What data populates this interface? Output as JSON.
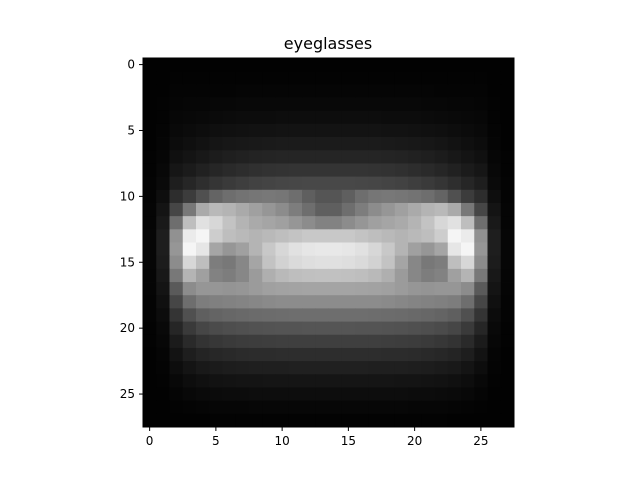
{
  "chart_data": {
    "type": "heatmap",
    "title": "eyeglasses",
    "xlabel": "",
    "ylabel": "",
    "colormap": "gray",
    "origin": "upper",
    "grid": false,
    "xlim": [
      -0.5,
      27.5
    ],
    "ylim": [
      27.5,
      -0.5
    ],
    "xticks": [
      0,
      5,
      10,
      15,
      20,
      25
    ],
    "yticks": [
      0,
      5,
      10,
      15,
      20,
      25
    ],
    "value_range": [
      0,
      255
    ],
    "rows": 28,
    "cols": 28,
    "values": [
      [
        2,
        2,
        2,
        2,
        2,
        2,
        2,
        2,
        2,
        2,
        2,
        2,
        2,
        2,
        2,
        2,
        2,
        2,
        2,
        2,
        2,
        2,
        2,
        2,
        2,
        2,
        2,
        2
      ],
      [
        2,
        2,
        3,
        3,
        3,
        3,
        3,
        3,
        3,
        3,
        3,
        3,
        3,
        3,
        3,
        3,
        3,
        3,
        3,
        3,
        3,
        3,
        3,
        3,
        3,
        3,
        2,
        2
      ],
      [
        2,
        2,
        4,
        4,
        4,
        4,
        4,
        5,
        5,
        5,
        5,
        5,
        5,
        5,
        5,
        5,
        5,
        5,
        5,
        5,
        5,
        5,
        4,
        4,
        4,
        4,
        2,
        2
      ],
      [
        2,
        3,
        5,
        6,
        6,
        7,
        7,
        8,
        8,
        8,
        8,
        8,
        8,
        8,
        8,
        8,
        8,
        8,
        8,
        8,
        8,
        7,
        7,
        6,
        6,
        5,
        3,
        2
      ],
      [
        2,
        3,
        7,
        8,
        9,
        10,
        11,
        12,
        12,
        12,
        13,
        13,
        13,
        13,
        13,
        13,
        13,
        13,
        12,
        12,
        12,
        11,
        10,
        9,
        8,
        7,
        3,
        2
      ],
      [
        2,
        4,
        9,
        11,
        13,
        15,
        16,
        17,
        18,
        18,
        19,
        19,
        19,
        19,
        19,
        19,
        19,
        19,
        18,
        18,
        17,
        16,
        15,
        13,
        11,
        9,
        4,
        2
      ],
      [
        2,
        5,
        12,
        15,
        18,
        21,
        23,
        24,
        25,
        26,
        27,
        27,
        27,
        27,
        27,
        27,
        27,
        27,
        26,
        25,
        24,
        23,
        21,
        18,
        15,
        12,
        5,
        2
      ],
      [
        3,
        6,
        16,
        20,
        24,
        28,
        31,
        33,
        35,
        36,
        37,
        37,
        37,
        37,
        37,
        37,
        37,
        37,
        36,
        35,
        33,
        31,
        28,
        24,
        20,
        16,
        6,
        3
      ],
      [
        3,
        8,
        22,
        27,
        33,
        38,
        42,
        45,
        48,
        50,
        51,
        52,
        52,
        52,
        52,
        52,
        52,
        51,
        50,
        48,
        45,
        42,
        38,
        33,
        27,
        22,
        8,
        3
      ],
      [
        4,
        10,
        30,
        38,
        46,
        53,
        58,
        62,
        66,
        68,
        70,
        71,
        72,
        72,
        72,
        72,
        71,
        70,
        68,
        66,
        62,
        58,
        53,
        46,
        38,
        30,
        10,
        4
      ],
      [
        4,
        14,
        45,
        60,
        80,
        100,
        110,
        115,
        118,
        120,
        118,
        110,
        95,
        85,
        85,
        95,
        110,
        118,
        120,
        118,
        115,
        110,
        100,
        80,
        60,
        45,
        14,
        4
      ],
      [
        5,
        20,
        70,
        120,
        170,
        185,
        180,
        170,
        160,
        150,
        140,
        125,
        110,
        95,
        95,
        110,
        125,
        140,
        150,
        160,
        170,
        180,
        185,
        170,
        120,
        70,
        20,
        5
      ],
      [
        5,
        25,
        110,
        190,
        225,
        215,
        195,
        180,
        170,
        165,
        160,
        150,
        140,
        130,
        130,
        140,
        150,
        160,
        165,
        170,
        180,
        195,
        215,
        225,
        190,
        110,
        25,
        5
      ],
      [
        6,
        30,
        145,
        235,
        245,
        205,
        190,
        185,
        180,
        185,
        190,
        195,
        200,
        200,
        200,
        200,
        195,
        190,
        185,
        180,
        185,
        190,
        205,
        245,
        235,
        145,
        30,
        6
      ],
      [
        6,
        30,
        150,
        245,
        230,
        165,
        150,
        160,
        180,
        200,
        215,
        225,
        230,
        232,
        232,
        230,
        225,
        215,
        200,
        180,
        160,
        150,
        165,
        230,
        245,
        150,
        30,
        6
      ],
      [
        6,
        28,
        140,
        215,
        190,
        125,
        120,
        135,
        165,
        195,
        210,
        218,
        222,
        224,
        224,
        222,
        218,
        210,
        195,
        165,
        135,
        120,
        125,
        190,
        215,
        140,
        28,
        6
      ],
      [
        5,
        24,
        120,
        180,
        160,
        130,
        125,
        135,
        155,
        175,
        185,
        190,
        192,
        193,
        193,
        192,
        190,
        185,
        175,
        155,
        135,
        125,
        130,
        160,
        180,
        120,
        24,
        5
      ],
      [
        5,
        20,
        90,
        140,
        150,
        150,
        148,
        150,
        155,
        160,
        162,
        163,
        164,
        164,
        164,
        164,
        163,
        162,
        160,
        155,
        150,
        148,
        150,
        150,
        140,
        90,
        20,
        5
      ],
      [
        4,
        16,
        70,
        110,
        125,
        128,
        130,
        132,
        135,
        138,
        140,
        140,
        140,
        140,
        140,
        140,
        140,
        140,
        138,
        135,
        132,
        130,
        128,
        125,
        110,
        70,
        16,
        4
      ],
      [
        4,
        12,
        52,
        80,
        95,
        100,
        103,
        105,
        107,
        108,
        109,
        110,
        110,
        110,
        110,
        110,
        110,
        109,
        108,
        107,
        105,
        103,
        100,
        95,
        80,
        52,
        12,
        4
      ],
      [
        3,
        9,
        38,
        58,
        70,
        75,
        78,
        80,
        82,
        83,
        84,
        84,
        85,
        85,
        85,
        85,
        84,
        84,
        83,
        82,
        80,
        78,
        75,
        70,
        58,
        38,
        9,
        3
      ],
      [
        3,
        7,
        27,
        42,
        51,
        55,
        58,
        60,
        61,
        62,
        63,
        63,
        63,
        63,
        63,
        63,
        63,
        63,
        62,
        61,
        60,
        58,
        55,
        51,
        42,
        27,
        7,
        3
      ],
      [
        2,
        5,
        19,
        30,
        36,
        39,
        41,
        43,
        44,
        44,
        45,
        45,
        45,
        45,
        45,
        45,
        45,
        45,
        44,
        44,
        43,
        41,
        39,
        36,
        30,
        19,
        5,
        2
      ],
      [
        2,
        4,
        13,
        20,
        25,
        27,
        29,
        30,
        31,
        31,
        31,
        32,
        32,
        32,
        32,
        32,
        32,
        31,
        31,
        31,
        30,
        29,
        27,
        25,
        20,
        13,
        4,
        2
      ],
      [
        2,
        3,
        8,
        13,
        16,
        18,
        19,
        20,
        20,
        21,
        21,
        21,
        21,
        21,
        21,
        21,
        21,
        21,
        21,
        20,
        20,
        19,
        18,
        16,
        13,
        8,
        3,
        2
      ],
      [
        2,
        2,
        5,
        8,
        10,
        11,
        12,
        12,
        13,
        13,
        13,
        13,
        13,
        13,
        13,
        13,
        13,
        13,
        13,
        13,
        12,
        12,
        11,
        10,
        8,
        5,
        2,
        2
      ],
      [
        2,
        2,
        3,
        4,
        5,
        6,
        6,
        6,
        7,
        7,
        7,
        7,
        7,
        7,
        7,
        7,
        7,
        7,
        7,
        7,
        6,
        6,
        6,
        5,
        4,
        3,
        2,
        2
      ],
      [
        2,
        2,
        2,
        2,
        2,
        3,
        3,
        3,
        3,
        3,
        3,
        3,
        3,
        3,
        3,
        3,
        3,
        3,
        3,
        3,
        3,
        3,
        3,
        2,
        2,
        2,
        2,
        2
      ]
    ]
  }
}
